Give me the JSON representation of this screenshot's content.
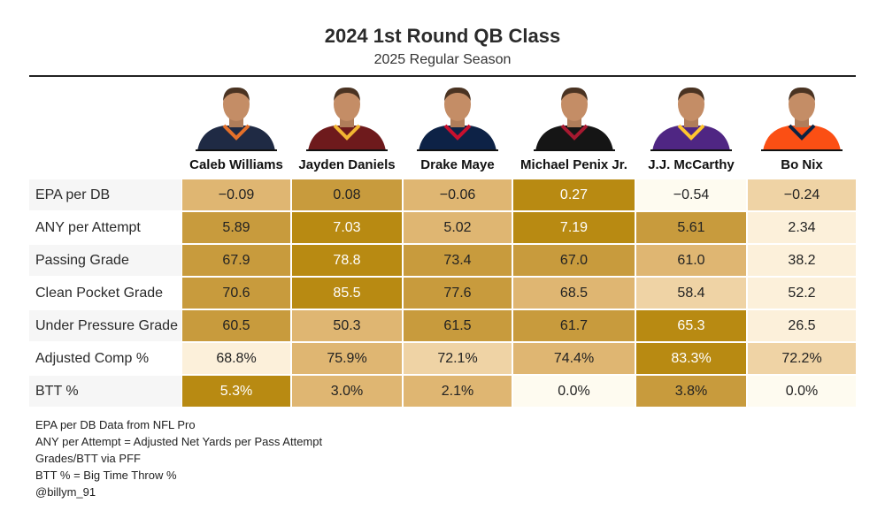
{
  "chart_data": {
    "type": "table",
    "title": "2024 1st Round QB Class",
    "subtitle": "2025 Regular Season",
    "players": [
      {
        "name": "Caleb Williams",
        "jersey": "#1f2a44",
        "trim": "#e4702a"
      },
      {
        "name": "Jayden Daniels",
        "jersey": "#6e1a1c",
        "trim": "#f2b632"
      },
      {
        "name": "Drake Maye",
        "jersey": "#0d2246",
        "trim": "#c8102e"
      },
      {
        "name": "Michael Penix Jr.",
        "jersey": "#151515",
        "trim": "#a71930"
      },
      {
        "name": "J.J. McCarthy",
        "jersey": "#4f2683",
        "trim": "#ffc62f"
      },
      {
        "name": "Bo Nix",
        "jersey": "#fb4f14",
        "trim": "#0a2343"
      }
    ],
    "metrics": [
      {
        "label": "EPA per DB",
        "values": [
          "−0.09",
          "0.08",
          "−0.06",
          "0.27",
          "−0.54",
          "−0.24"
        ],
        "shade": [
          3,
          4,
          3,
          5,
          0,
          2
        ]
      },
      {
        "label": "ANY per Attempt",
        "values": [
          "5.89",
          "7.03",
          "5.02",
          "7.19",
          "5.61",
          "2.34"
        ],
        "shade": [
          4,
          5,
          3,
          5,
          4,
          1
        ]
      },
      {
        "label": "Passing Grade",
        "values": [
          "67.9",
          "78.8",
          "73.4",
          "67.0",
          "61.0",
          "38.2"
        ],
        "shade": [
          4,
          5,
          4,
          4,
          3,
          1
        ]
      },
      {
        "label": "Clean Pocket Grade",
        "values": [
          "70.6",
          "85.5",
          "77.6",
          "68.5",
          "58.4",
          "52.2"
        ],
        "shade": [
          4,
          5,
          4,
          3,
          2,
          1
        ]
      },
      {
        "label": "Under Pressure Grade",
        "values": [
          "60.5",
          "50.3",
          "61.5",
          "61.7",
          "65.3",
          "26.5"
        ],
        "shade": [
          4,
          3,
          4,
          4,
          5,
          1
        ]
      },
      {
        "label": "Adjusted Comp %",
        "values": [
          "68.8%",
          "75.9%",
          "72.1%",
          "74.4%",
          "83.3%",
          "72.2%"
        ],
        "shade": [
          1,
          3,
          2,
          3,
          5,
          2
        ]
      },
      {
        "label": "BTT %",
        "values": [
          "5.3%",
          "3.0%",
          "2.1%",
          "0.0%",
          "3.8%",
          "0.0%"
        ],
        "shade": [
          5,
          3,
          3,
          0,
          4,
          0
        ]
      }
    ],
    "palette": [
      "#fefbf0",
      "#fcf0da",
      "#efd3a5",
      "#dfb672",
      "#c89b3d",
      "#b88a12"
    ]
  },
  "notes": [
    "EPA per DB Data from NFL Pro",
    "ANY per Attempt = Adjusted Net Yards per Pass Attempt",
    "Grades/BTT via PFF",
    "BTT % = Big Time Throw %",
    "@billym_91"
  ]
}
